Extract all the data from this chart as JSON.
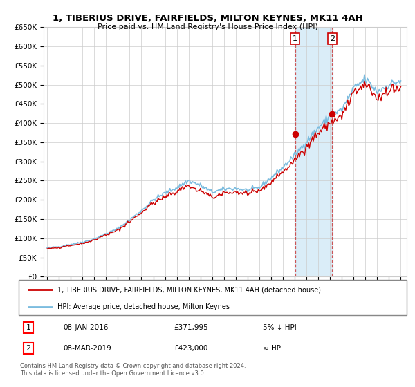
{
  "title": "1, TIBERIUS DRIVE, FAIRFIELDS, MILTON KEYNES, MK11 4AH",
  "subtitle": "Price paid vs. HM Land Registry's House Price Index (HPI)",
  "ylim": [
    0,
    650000
  ],
  "yticks": [
    0,
    50000,
    100000,
    150000,
    200000,
    250000,
    300000,
    350000,
    400000,
    450000,
    500000,
    550000,
    600000,
    650000
  ],
  "ytick_labels": [
    "£0",
    "£50K",
    "£100K",
    "£150K",
    "£200K",
    "£250K",
    "£300K",
    "£350K",
    "£400K",
    "£450K",
    "£500K",
    "£550K",
    "£600K",
    "£650K"
  ],
  "hpi_color": "#7bbcdf",
  "price_color": "#cc0000",
  "highlight_color": "#daedf8",
  "transaction1_x": 2016.03,
  "transaction1_y": 371995,
  "transaction2_x": 2019.18,
  "transaction2_y": 423000,
  "transaction1": {
    "date": "08-JAN-2016",
    "price": 371995,
    "note": "5% ↓ HPI"
  },
  "transaction2": {
    "date": "08-MAR-2019",
    "price": 423000,
    "note": "≈ HPI"
  },
  "legend1": "1, TIBERIUS DRIVE, FAIRFIELDS, MILTON KEYNES, MK11 4AH (detached house)",
  "legend2": "HPI: Average price, detached house, Milton Keynes",
  "footer": "Contains HM Land Registry data © Crown copyright and database right 2024.\nThis data is licensed under the Open Government Licence v3.0.",
  "highlight_x1": 2016.0,
  "highlight_x2": 2019.25,
  "xlim_left": 1994.7,
  "xlim_right": 2025.5
}
